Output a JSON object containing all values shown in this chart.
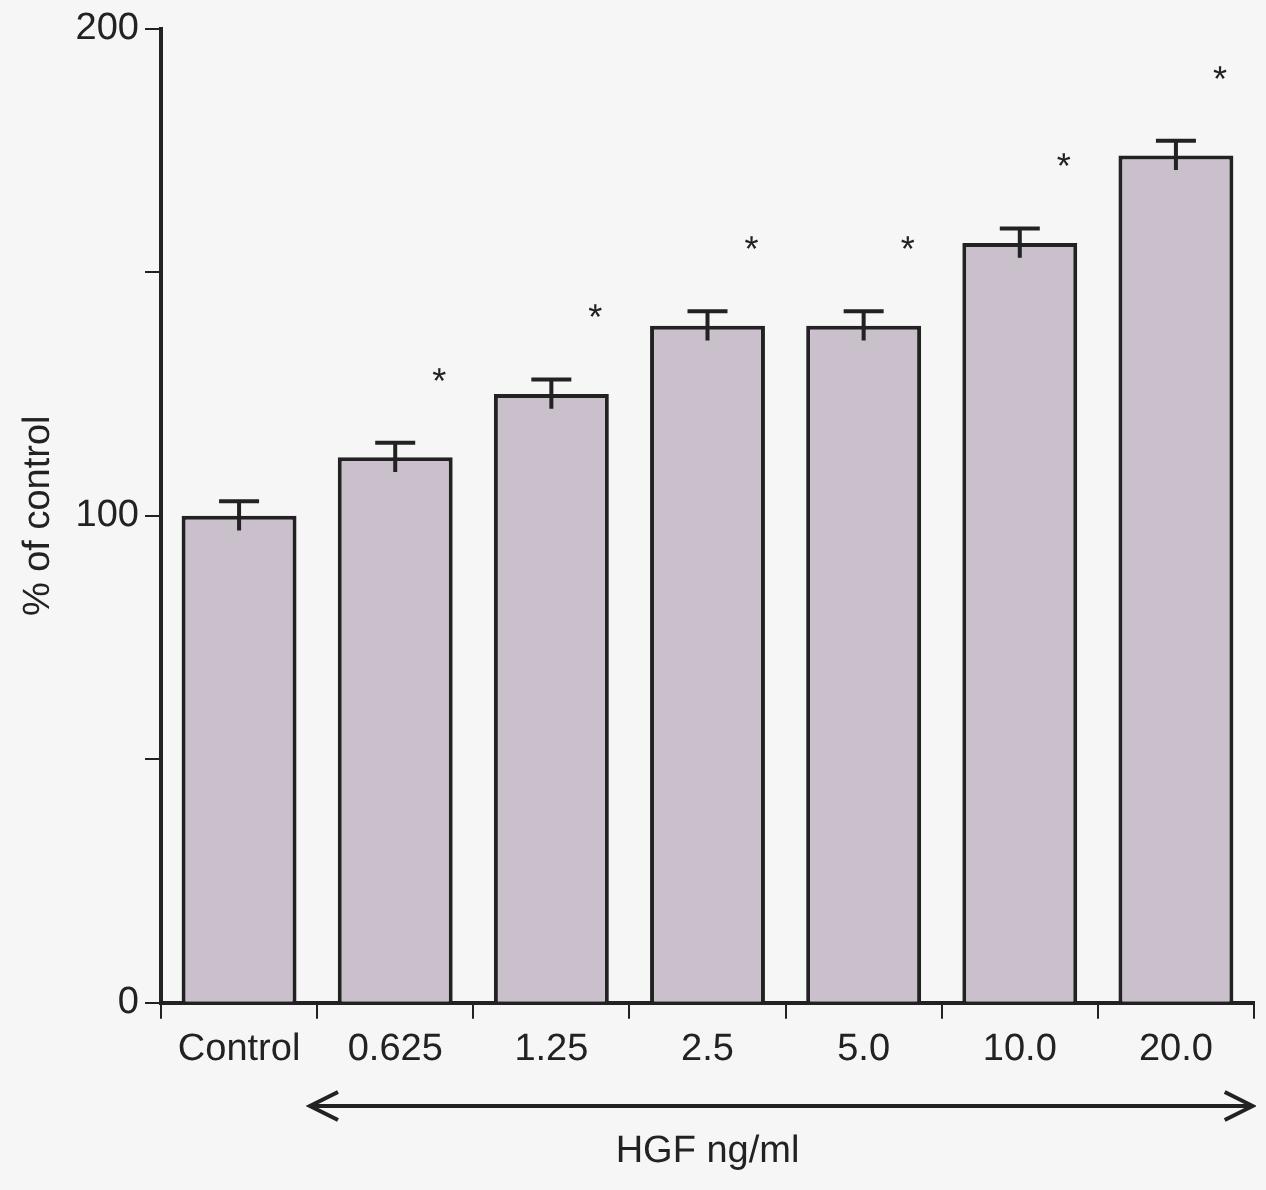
{
  "chart_data": {
    "type": "bar",
    "xlabel": "HGF ng/ml",
    "ylabel": "% of control",
    "categories": [
      "Control",
      "0.625",
      "1.25",
      "2.5",
      "5.0",
      "10.0",
      "20.0"
    ],
    "values": [
      100,
      112,
      125,
      139,
      139,
      156,
      174
    ],
    "errors": [
      3,
      3,
      3,
      3,
      3,
      3,
      3
    ],
    "color": "#c9c0cc",
    "ylim": [
      0,
      200
    ],
    "yticks": [
      0,
      {
        "value": 50,
        "label": null
      },
      100,
      {
        "value": 150,
        "label": null
      },
      200
    ],
    "annotations": [
      "*",
      "*",
      "*",
      "*",
      "*",
      "*"
    ]
  }
}
